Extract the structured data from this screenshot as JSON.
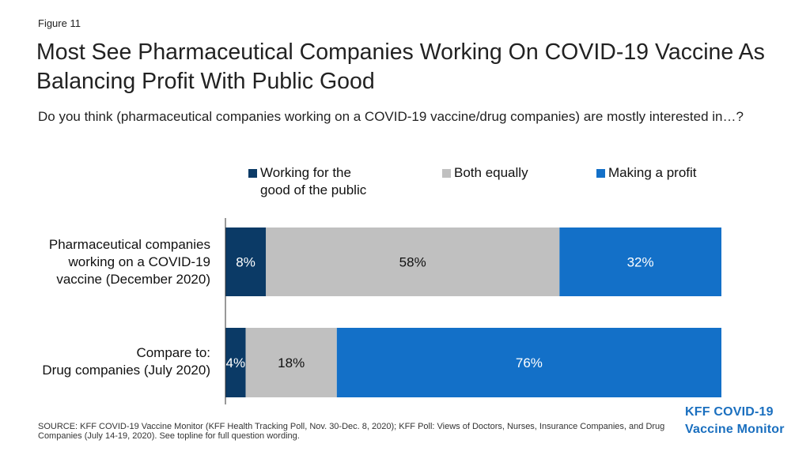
{
  "figure_label": "Figure 11",
  "title": "Most See Pharmaceutical Companies Working On COVID-19 Vaccine As Balancing Profit With Public Good",
  "subtitle": "Do you think (pharmaceutical companies working on a COVID-19 vaccine/drug companies) are mostly interested in…?",
  "source": "SOURCE: KFF COVID-19 Vaccine Monitor (KFF Health Tracking Poll, Nov. 30-Dec. 8, 2020); KFF Poll: Views of Doctors, Nurses, Insurance Companies, and Drug Companies (July 14-19, 2020). See topline for full question wording.",
  "logo": {
    "line1": "KFF COVID-19",
    "line2": "Vaccine Monitor"
  },
  "chart_data": {
    "type": "bar",
    "orientation": "horizontal",
    "stacked": true,
    "categories": [
      "Pharmaceutical companies working on a COVID-19 vaccine (December 2020)",
      "Compare to: Drug companies (July 2020)"
    ],
    "category_lines": [
      [
        "Pharmaceutical companies",
        "working on a COVID-19",
        "vaccine (December 2020)"
      ],
      [
        "Compare to:",
        "Drug companies (July 2020)"
      ]
    ],
    "series": [
      {
        "name": "Working for the good of the public",
        "name_lines": [
          "Working for the",
          "good of the public"
        ],
        "values": [
          8,
          4
        ],
        "color": "#0b3a66",
        "label_color": "#ffffff"
      },
      {
        "name": "Both equally",
        "name_lines": [
          "Both equally"
        ],
        "values": [
          58,
          18
        ],
        "color": "#c0c0c0",
        "label_color": "#111111"
      },
      {
        "name": "Making a profit",
        "name_lines": [
          "Making a profit"
        ],
        "values": [
          32,
          76
        ],
        "color": "#1370c8",
        "label_color": "#ffffff"
      }
    ],
    "data_labels": [
      [
        "8%",
        "58%",
        "32%"
      ],
      [
        "4%",
        "18%",
        "76%"
      ]
    ],
    "xlim": [
      0,
      98
    ],
    "legend_position": "top",
    "grid": false
  }
}
